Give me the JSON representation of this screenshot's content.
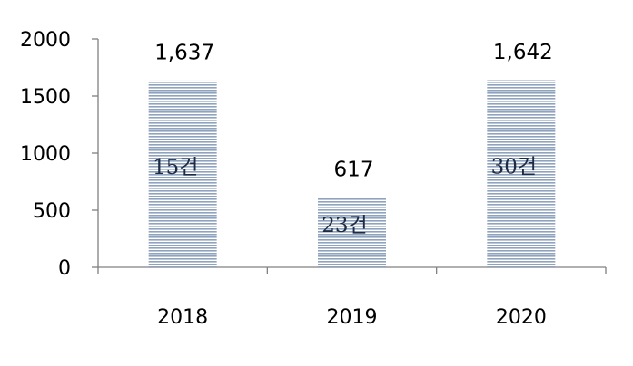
{
  "chart_data": {
    "type": "bar",
    "categories": [
      "2018",
      "2019",
      "2020"
    ],
    "values": [
      1637,
      617,
      1642
    ],
    "value_labels": [
      "1,637",
      "617",
      "1,642"
    ],
    "inner_labels": [
      "15건",
      "23건",
      "30건"
    ],
    "y_ticks": [
      "2000",
      "1500",
      "1000",
      "500",
      "0"
    ],
    "ylim": [
      0,
      2000
    ],
    "grid": false,
    "bar_fill": "horizontal-stripes",
    "colors": {
      "bar_stripe": "#8fa3bf",
      "bar_background": "#ffffff",
      "axis": "#808080"
    }
  }
}
